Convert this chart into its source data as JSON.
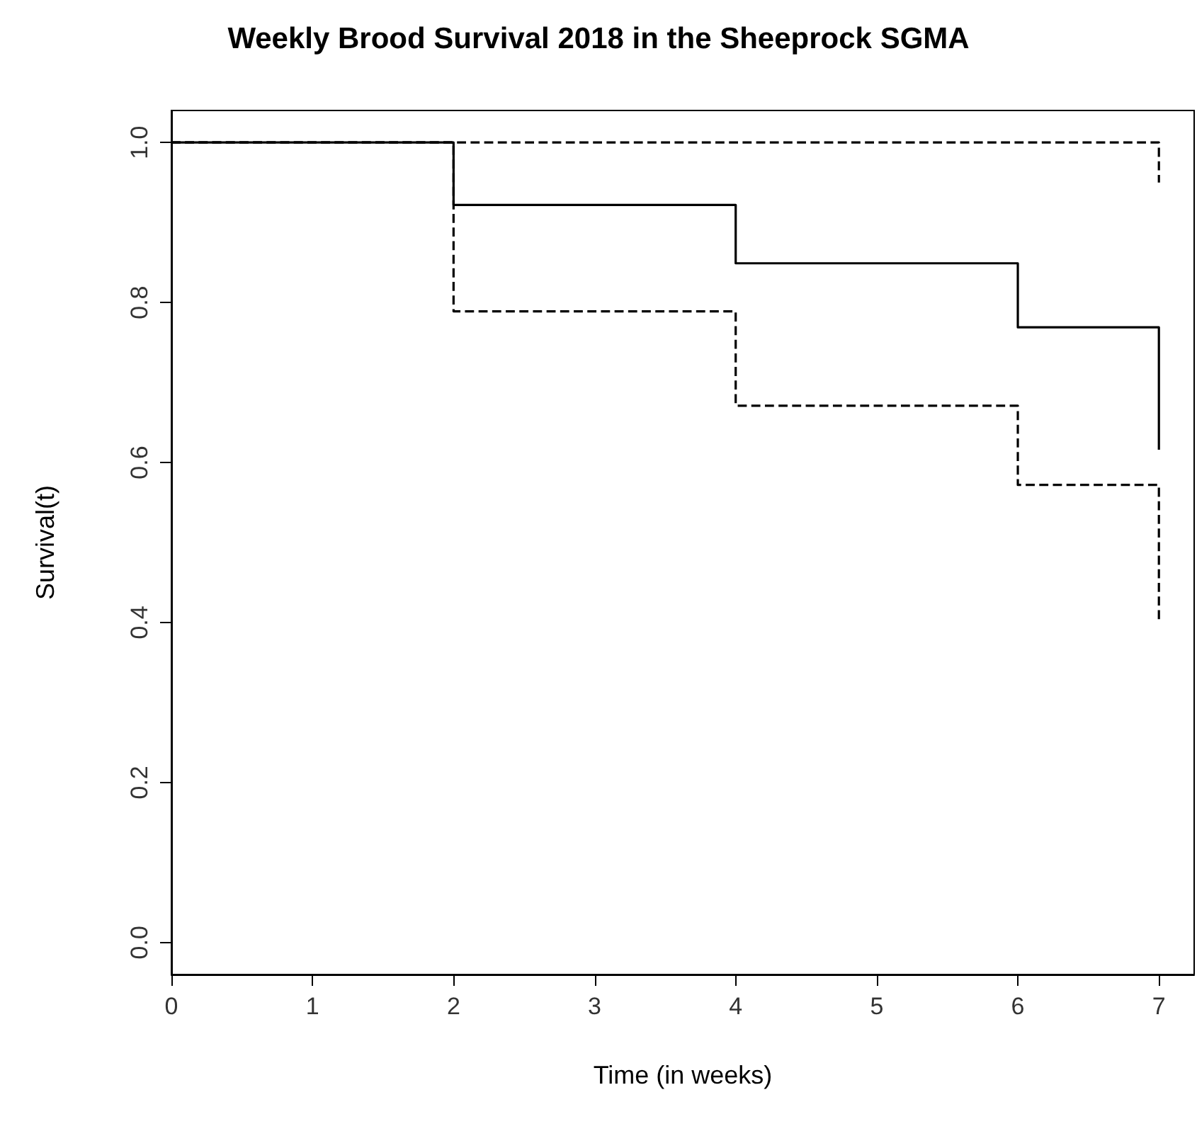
{
  "chart_data": {
    "type": "step",
    "title": "Weekly Brood Survival 2018 in the Sheeprock SGMA",
    "xlabel": "Time (in weeks)",
    "ylabel": "Survival(t)",
    "x": [
      0,
      2,
      4,
      6,
      7
    ],
    "series": [
      {
        "color": "#000000",
        "line_style": "solid",
        "values": [
          1,
          0.922,
          0.849,
          0.769,
          0.616
        ]
      },
      {
        "color": "#000000",
        "line_style": "dashed",
        "values": [
          1,
          1,
          1,
          1,
          0.95
        ]
      },
      {
        "color": "#000000",
        "line_style": "dashed",
        "values": [
          1,
          0.789,
          0.671,
          0.572,
          0.4
        ]
      }
    ],
    "xlim": [
      0,
      7.25
    ],
    "xticks": [
      0,
      1,
      2,
      3,
      4,
      5,
      6,
      7
    ],
    "ylim": [
      -0.04,
      1.04
    ],
    "yticks": [
      {
        "value": 0,
        "label": "0.0"
      },
      {
        "value": 0.2,
        "label": "0.2"
      },
      {
        "value": 0.4,
        "label": "0.4"
      },
      {
        "value": 0.6,
        "label": "0.6"
      },
      {
        "value": 0.8,
        "label": "0.8"
      },
      {
        "value": 1,
        "label": "1.0"
      }
    ],
    "marker": "none",
    "grid": false
  }
}
